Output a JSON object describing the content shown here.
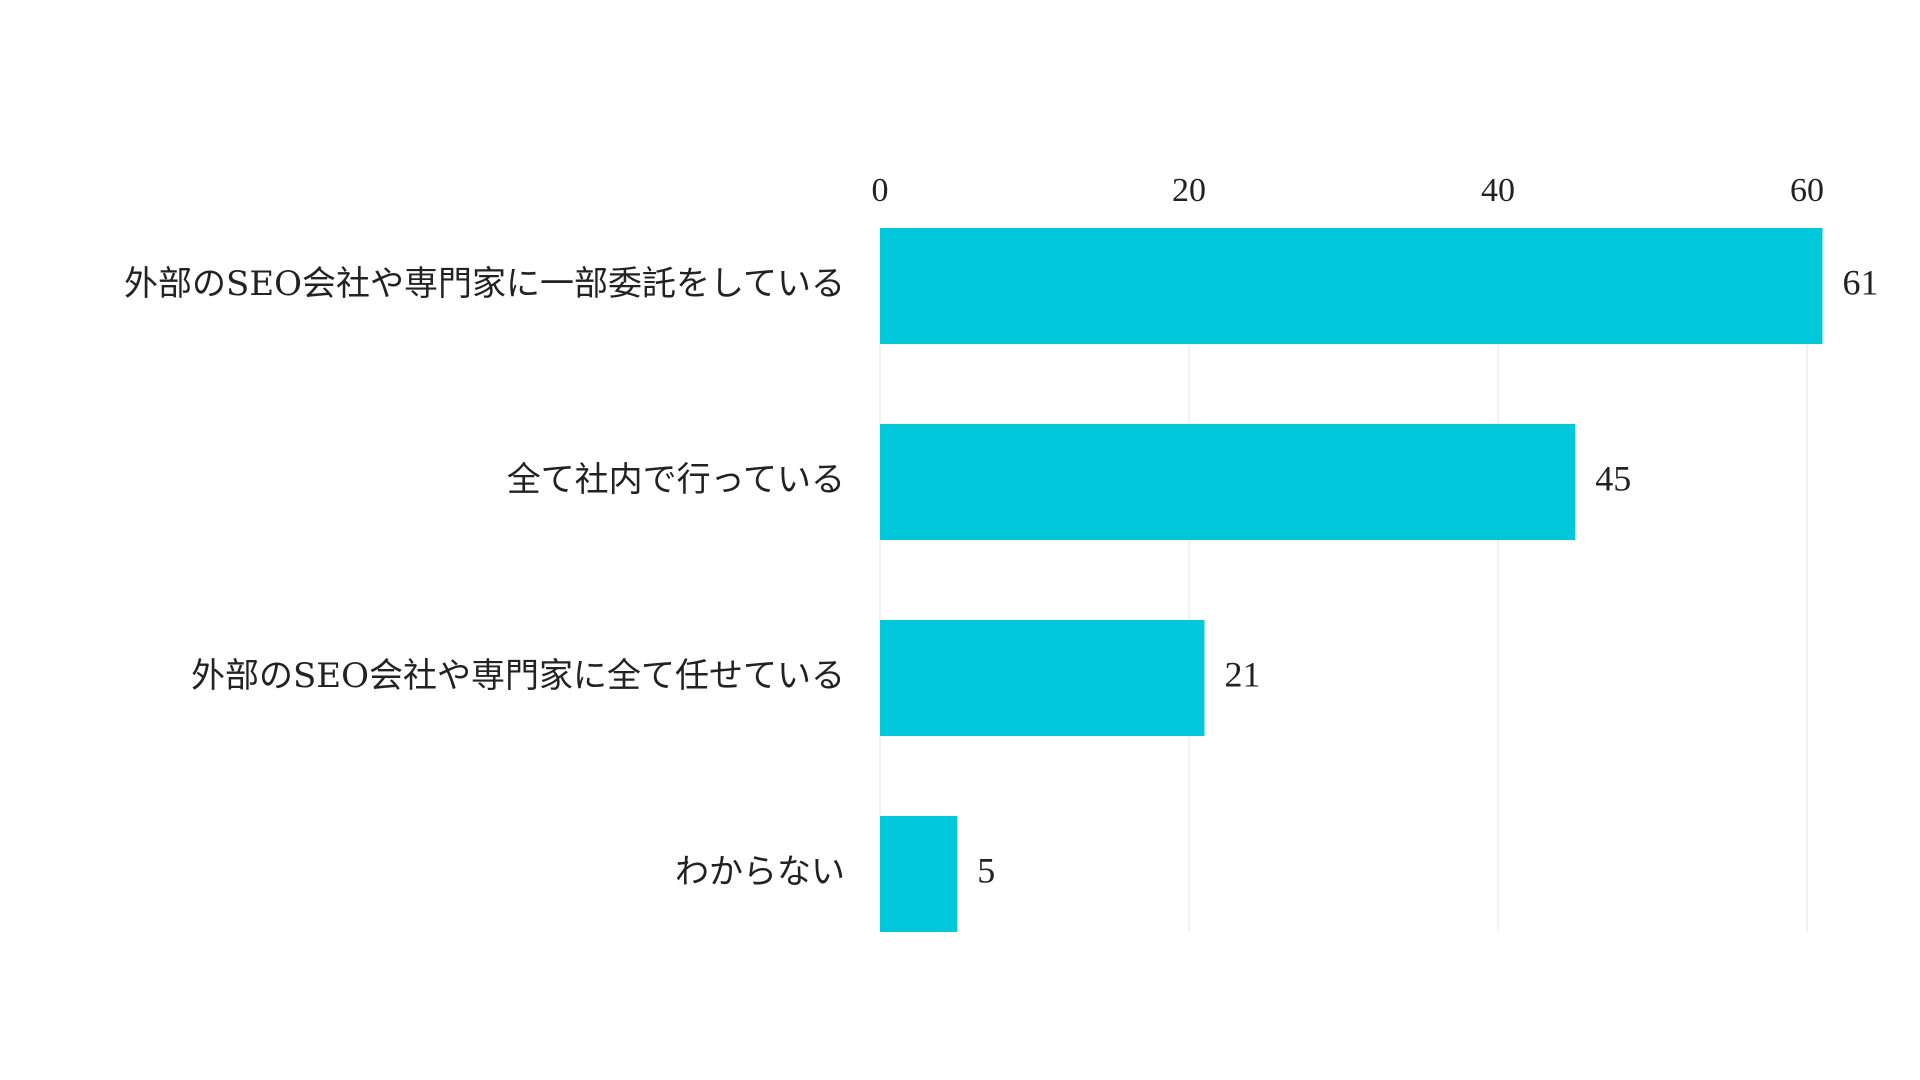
{
  "chart_data": {
    "type": "bar",
    "orientation": "horizontal",
    "categories": [
      "外部のSEO会社や専門家に一部委託をしている",
      "全て社内で行っている",
      "外部のSEO会社や専門家に全て任せている",
      "わからない"
    ],
    "values": [
      61,
      45,
      21,
      5
    ],
    "xlim": [
      0,
      60
    ],
    "xticks": [
      0,
      20,
      40,
      60
    ],
    "x_axis_position": "top",
    "grid": true,
    "data_labels": true,
    "bar_color": "#00C8DA",
    "grid_color": "#E6E6E6"
  }
}
